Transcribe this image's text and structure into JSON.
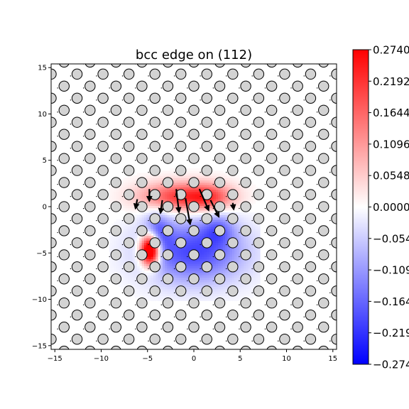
{
  "chart_data": {
    "type": "heatmap",
    "title": "bcc edge on (112)",
    "xlabel": "",
    "ylabel": "",
    "xlim": [
      -15.4,
      15.4
    ],
    "ylim": [
      -15.4,
      15.4
    ],
    "x_ticks": [
      -15,
      -10,
      -5,
      0,
      5,
      10,
      15
    ],
    "y_ticks": [
      -15,
      -10,
      -5,
      0,
      5,
      10,
      15
    ],
    "x_tick_labels": [
      "−15",
      "−10",
      "−5",
      "0",
      "5",
      "10",
      "15"
    ],
    "y_tick_labels": [
      "−15",
      "−10",
      "−5",
      "0",
      "5",
      "10",
      "15"
    ],
    "grid": false,
    "colormap": "bwr",
    "colorbar": {
      "min": -0.274,
      "max": 0.274,
      "ticks": [
        0.274,
        0.2192,
        0.1644,
        0.1096,
        0.0548,
        0.0,
        -0.0548,
        -0.1096,
        -0.1644,
        -0.2192,
        -0.274
      ],
      "tick_labels": [
        "0.2740",
        "0.2192",
        "0.1644",
        "0.1096",
        "0.0548",
        "0.0000",
        "−0.0548",
        "−0.1096",
        "−0.1644",
        "−0.2192",
        "−0.2740"
      ]
    },
    "lattice": {
      "a1": [
        2.8,
        0.0
      ],
      "a2": [
        1.4,
        1.3
      ],
      "marker": "open circle",
      "marker_fill": "#d3d3d3"
    },
    "field_lobes": [
      {
        "x": -1.2,
        "y": 1.1,
        "sx": 3.2,
        "sy": 1.1,
        "amp": 0.22
      },
      {
        "x": 1.8,
        "y": 1.0,
        "sx": 1.6,
        "sy": 1.0,
        "amp": 0.1
      },
      {
        "x": 0.0,
        "y": -4.8,
        "sx": 3.8,
        "sy": 2.4,
        "amp": -0.2
      },
      {
        "x": -4.0,
        "y": -2.8,
        "sx": 1.0,
        "sy": 1.6,
        "amp": -0.14
      },
      {
        "x": 2.6,
        "y": -2.4,
        "sx": 1.2,
        "sy": 1.2,
        "amp": -0.1
      },
      {
        "x": -4.7,
        "y": -4.6,
        "sx": 0.75,
        "sy": 1.2,
        "amp": 0.5
      }
    ],
    "quiver": [
      {
        "x": -1.9,
        "y": 1.9,
        "u": 0.3,
        "v": -2.5
      },
      {
        "x": -0.9,
        "y": 0.9,
        "u": 0.5,
        "v": -2.8
      },
      {
        "x": 0.6,
        "y": 1.9,
        "u": 1.0,
        "v": -2.3
      },
      {
        "x": 1.8,
        "y": 0.7,
        "u": 0.9,
        "v": -1.8
      },
      {
        "x": -3.4,
        "y": 0.7,
        "u": -0.2,
        "v": -1.4
      },
      {
        "x": -4.8,
        "y": 1.9,
        "u": 0.0,
        "v": -1.3
      },
      {
        "x": -6.1,
        "y": 0.8,
        "u": -0.2,
        "v": -1.0
      },
      {
        "x": 4.2,
        "y": 0.4,
        "u": 0.1,
        "v": -0.7
      }
    ]
  }
}
